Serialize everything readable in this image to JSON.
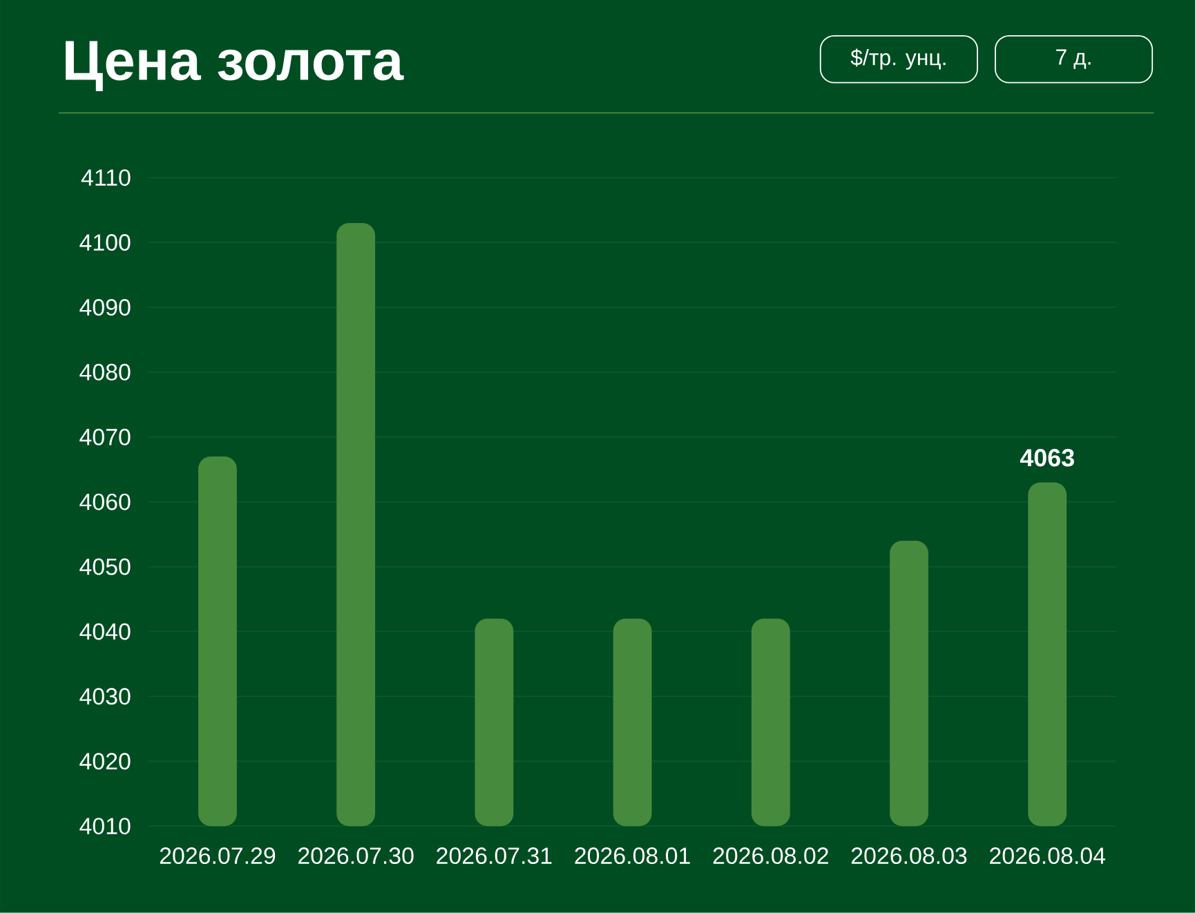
{
  "chart_data": {
    "type": "bar",
    "title": "Цена золота",
    "annotations": [
      "$/тр. унц.",
      "7 д."
    ],
    "categories": [
      "2026.07.29",
      "2026.07.30",
      "2026.07.31",
      "2026.08.01",
      "2026.08.02",
      "2026.08.03",
      "2026.08.04"
    ],
    "values": [
      4067,
      4103,
      4042,
      4042,
      4042,
      4054,
      4063
    ],
    "value_labels": [
      null,
      null,
      null,
      null,
      null,
      null,
      "4063"
    ],
    "color": "#468a3e",
    "ylim": [
      4010,
      4110
    ],
    "yticks": [
      4010,
      4020,
      4030,
      4040,
      4050,
      4060,
      4070,
      4080,
      4090,
      4100,
      4110
    ],
    "grid": "y"
  }
}
